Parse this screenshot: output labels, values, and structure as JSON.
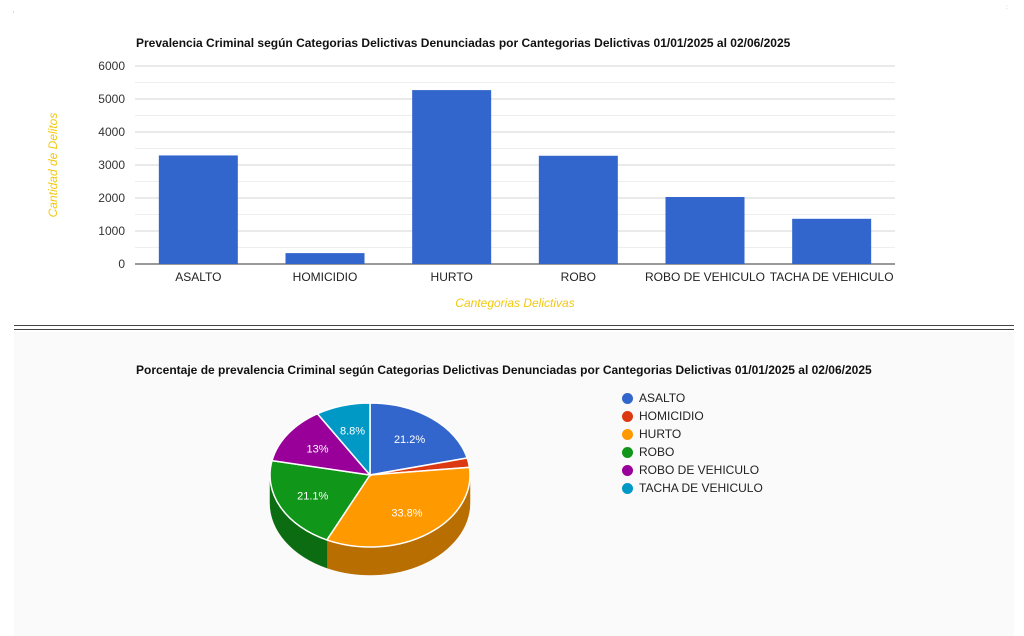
{
  "chart_data": [
    {
      "type": "bar",
      "title": "Prevalencia Criminal según Categorias Delictivas Denunciadas por Cantegorias Delictivas 01/01/2025 al 02/06/2025",
      "xlabel": "Cantegorias Delictivas",
      "ylabel": "Cantidad de Delitos",
      "categories": [
        "ASALTO",
        "HOMICIDIO",
        "HURTO",
        "ROBO",
        "ROBO DE VEHICULO",
        "TACHA DE VEHICULO"
      ],
      "values": [
        3290,
        330,
        5270,
        3280,
        2030,
        1370
      ],
      "ylim": [
        0,
        6000
      ],
      "yticks": [
        "0",
        "1000",
        "2000",
        "3000",
        "4000",
        "5000",
        "6000"
      ],
      "grid": true,
      "color": "#3366cc"
    },
    {
      "type": "pie",
      "style": "3d",
      "title": "Porcentaje de prevalencia Criminal según Categorias Delictivas Denunciadas por Cantegorias Delictivas 01/01/2025 al 02/06/2025",
      "labels": [
        "ASALTO",
        "HOMICIDIO",
        "HURTO",
        "ROBO",
        "ROBO DE VEHICULO",
        "TACHA DE VEHICULO"
      ],
      "values": [
        21.2,
        2.1,
        33.8,
        21.1,
        13,
        8.8
      ],
      "slice_labels": [
        "21.2%",
        "",
        "33.8%",
        "21.1%",
        "13%",
        "8.8%"
      ],
      "colors": [
        "#3366cc",
        "#dc3912",
        "#ff9900",
        "#109618",
        "#990099",
        "#0099c6"
      ],
      "legend_position": "right"
    }
  ]
}
